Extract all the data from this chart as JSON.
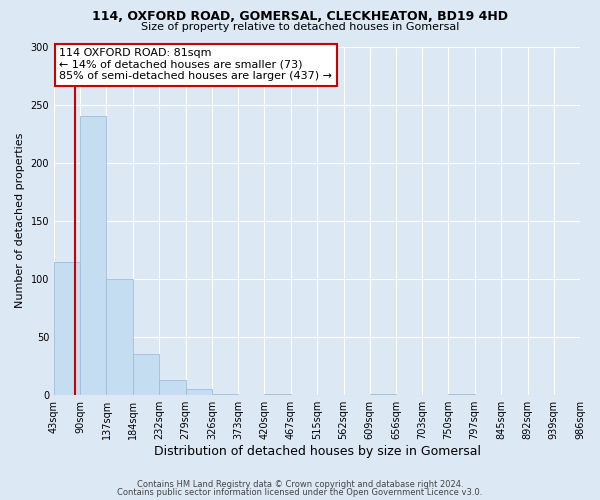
{
  "title": "114, OXFORD ROAD, GOMERSAL, CLECKHEATON, BD19 4HD",
  "subtitle": "Size of property relative to detached houses in Gomersal",
  "xlabel": "Distribution of detached houses by size in Gomersal",
  "ylabel": "Number of detached properties",
  "bin_labels": [
    "43sqm",
    "90sqm",
    "137sqm",
    "184sqm",
    "232sqm",
    "279sqm",
    "326sqm",
    "373sqm",
    "420sqm",
    "467sqm",
    "515sqm",
    "562sqm",
    "609sqm",
    "656sqm",
    "703sqm",
    "750sqm",
    "797sqm",
    "845sqm",
    "892sqm",
    "939sqm",
    "986sqm"
  ],
  "bar_heights": [
    114,
    240,
    100,
    35,
    13,
    5,
    1,
    0,
    1,
    0,
    0,
    0,
    1,
    0,
    0,
    1,
    0,
    0,
    0,
    0,
    1
  ],
  "bar_color": "#c5ddf0",
  "bar_edge_color": "#a0bcd8",
  "property_line_x": 81,
  "property_line_label": "114 OXFORD ROAD: 81sqm",
  "annotation_line1": "← 14% of detached houses are smaller (73)",
  "annotation_line2": "85% of semi-detached houses are larger (437) →",
  "annotation_box_facecolor": "#ffffff",
  "annotation_box_edgecolor": "#cc0000",
  "property_line_color": "#cc0000",
  "ylim": [
    0,
    300
  ],
  "yticks": [
    0,
    50,
    100,
    150,
    200,
    250,
    300
  ],
  "footer1": "Contains HM Land Registry data © Crown copyright and database right 2024.",
  "footer2": "Contains public sector information licensed under the Open Government Licence v3.0.",
  "background_color": "#dde8f5",
  "axes_background_color": "#dde8f5",
  "grid_color": "#ffffff",
  "title_fontsize": 9,
  "subtitle_fontsize": 8,
  "ylabel_fontsize": 8,
  "xlabel_fontsize": 9,
  "tick_fontsize": 7,
  "annotation_fontsize": 8,
  "footer_fontsize": 6
}
